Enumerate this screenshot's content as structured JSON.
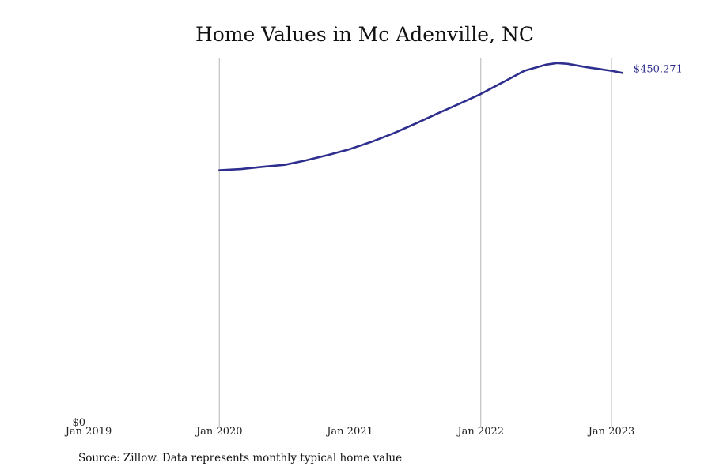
{
  "chart_data": {
    "type": "line",
    "title": "Home Values in Mc Adenville, NC",
    "x_ticks": [
      "Jan 2019",
      "Jan 2020",
      "Jan 2021",
      "Jan 2022",
      "Jan 2023"
    ],
    "x_range": [
      "2019-01",
      "2023-01"
    ],
    "y_ticks": [
      "$0"
    ],
    "ylim": [
      0,
      470000
    ],
    "grid": "vertical",
    "series": [
      {
        "color": "#2e2e8f",
        "end_label": "$450,271",
        "points": [
          {
            "date": "2020-01",
            "value": 324000
          },
          {
            "date": "2020-03",
            "value": 325500
          },
          {
            "date": "2020-05",
            "value": 328500
          },
          {
            "date": "2020-07",
            "value": 331000
          },
          {
            "date": "2020-09",
            "value": 337000
          },
          {
            "date": "2020-11",
            "value": 344000
          },
          {
            "date": "2021-01",
            "value": 351500
          },
          {
            "date": "2021-03",
            "value": 361000
          },
          {
            "date": "2021-05",
            "value": 372000
          },
          {
            "date": "2021-07",
            "value": 384500
          },
          {
            "date": "2021-09",
            "value": 397500
          },
          {
            "date": "2021-11",
            "value": 410000
          },
          {
            "date": "2022-01",
            "value": 423000
          },
          {
            "date": "2022-03",
            "value": 438000
          },
          {
            "date": "2022-05",
            "value": 453000
          },
          {
            "date": "2022-07",
            "value": 461000
          },
          {
            "date": "2022-08",
            "value": 463000
          },
          {
            "date": "2022-09",
            "value": 462000
          },
          {
            "date": "2022-10",
            "value": 459500
          },
          {
            "date": "2022-11",
            "value": 457000
          },
          {
            "date": "2022-12",
            "value": 455000
          },
          {
            "date": "2023-01",
            "value": 453000
          },
          {
            "date": "2023-02",
            "value": 450271
          }
        ]
      }
    ]
  },
  "footer": {
    "source": "Source: Zillow. Data represents monthly typical home value"
  }
}
